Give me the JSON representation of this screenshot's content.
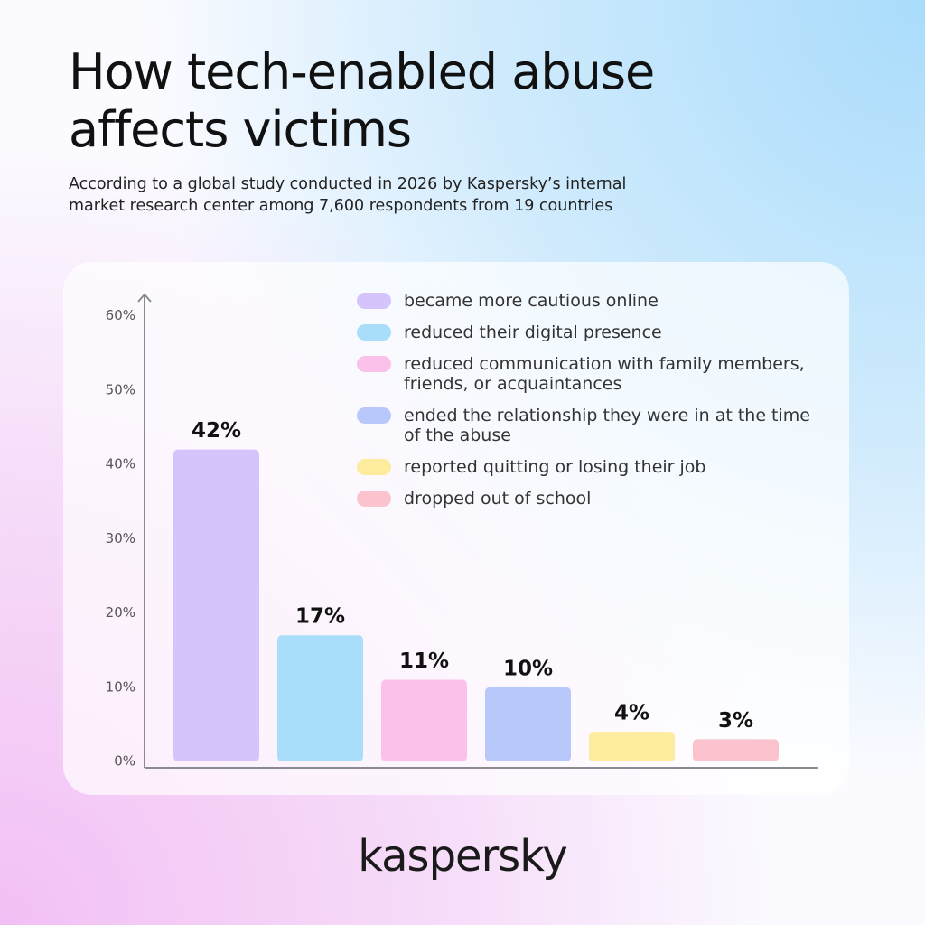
{
  "chart_data": {
    "type": "bar",
    "title": "How tech-enabled abuse affects victims",
    "subtitle": "According to a global study conducted in 2026 by Kaspersky’s internal market research center among 7,600 respondents from 19 countries",
    "categories": [
      "became more cautious online",
      "reduced their digital presence",
      "reduced communication with family members, friends, or acquaintances",
      "ended the relationship they were in at the time of the abuse",
      "reported quitting or losing their job",
      "dropped out of school"
    ],
    "values": [
      42,
      17,
      11,
      10,
      4,
      3
    ],
    "value_labels": [
      "42%",
      "17%",
      "11%",
      "10%",
      "4%",
      "3%"
    ],
    "colors": [
      "#d5c4fb",
      "#a8def9",
      "#fbc1ea",
      "#b9c8fa",
      "#fdec9d",
      "#fbc3ce"
    ],
    "ylim": [
      0,
      63
    ],
    "yticks": [
      {
        "value": 0,
        "label": "0%"
      },
      {
        "value": 10,
        "label": "10%"
      },
      {
        "value": 20,
        "label": "20%"
      },
      {
        "value": 30,
        "label": "30%"
      },
      {
        "value": 40,
        "label": "40%"
      },
      {
        "value": 50,
        "label": "50%"
      },
      {
        "value": 60,
        "label": "60%"
      }
    ],
    "legend": "top-right",
    "brand": "kaspersky"
  }
}
